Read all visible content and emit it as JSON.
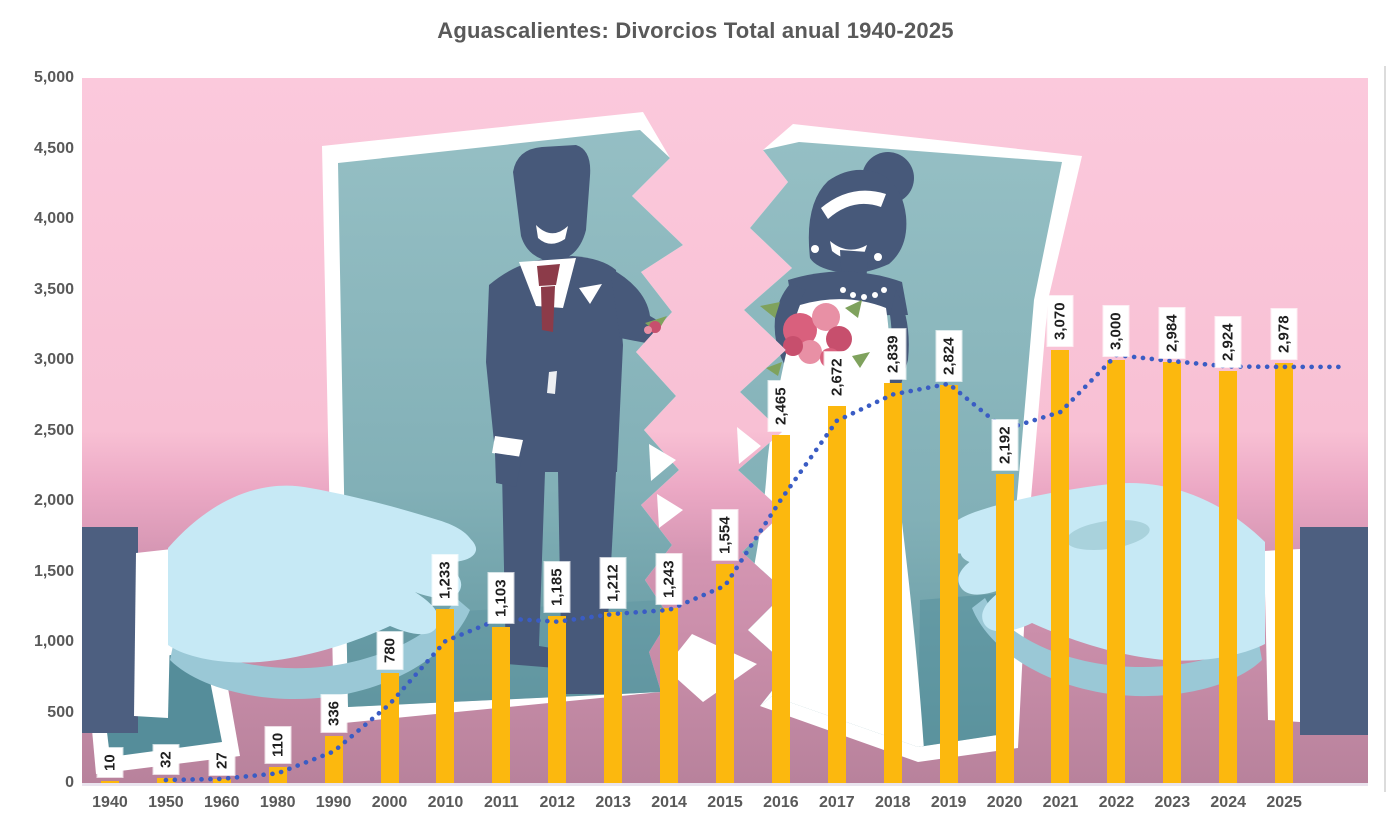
{
  "header": {
    "title": "Aguascalientes: Divorcios Total anual 1940-2025"
  },
  "chart_data": {
    "type": "bar",
    "title": "Aguascalientes: Divorcios Total anual 1940-2025",
    "categories": [
      "1940",
      "1950",
      "1960",
      "1980",
      "1990",
      "2000",
      "2010",
      "2011",
      "2012",
      "2013",
      "2014",
      "2015",
      "2016",
      "2017",
      "2018",
      "2019",
      "2020",
      "2021",
      "2022",
      "2023",
      "2024",
      "2025"
    ],
    "values": [
      10,
      32,
      27,
      110,
      336,
      780,
      1233,
      1103,
      1185,
      1212,
      1243,
      1554,
      2465,
      2672,
      2839,
      2824,
      2192,
      3070,
      3000,
      2984,
      2924,
      2978
    ],
    "data_labels": [
      "10",
      "32",
      "27",
      "110",
      "336",
      "780",
      "1,233",
      "1,103",
      "1,185",
      "1,212",
      "1,243",
      "1,554",
      "2,465",
      "2,672",
      "2,839",
      "2,824",
      "2,192",
      "3,070",
      "3,000",
      "2,984",
      "2,924",
      "2,978"
    ],
    "xlabel": "",
    "ylabel": "",
    "y_axis": {
      "min": 0,
      "max": 5000,
      "step": 500,
      "tick_labels": [
        "0",
        "500",
        "1,000",
        "1,500",
        "2,000",
        "2,500",
        "3,000",
        "3,500",
        "4,000",
        "4,500",
        "5,000"
      ]
    },
    "gridlines": false,
    "legend": "none",
    "bar_color": "#FCB80E",
    "data_label_style": {
      "rotation": "vertical",
      "background": "#FFFFFF",
      "color": "#1F1F1F"
    },
    "axis_text_color": "#595959",
    "trendline": {
      "kind": "2-period moving average",
      "style": "dotted",
      "color": "#3A5CC4",
      "extends_one_period_forward": true
    }
  },
  "illustration": {
    "description": "Torn wedding photo of groom and bride held apart by two hands (divorce concept) behind the plot area",
    "colors": {
      "pink_background": "#FBC6D8",
      "mauve_floor": "#B8829C",
      "photo_teal": "#8BB7BD",
      "silhouette_navy": "#47597A",
      "tie_red": "#8C3B49",
      "hand_blue": "#C6E9F5",
      "hand_shadow": "#9AC8D6",
      "cuff_white": "#FFFFFF",
      "rose_pink": "#D9607D",
      "leaf_green": "#7FA25D"
    }
  }
}
